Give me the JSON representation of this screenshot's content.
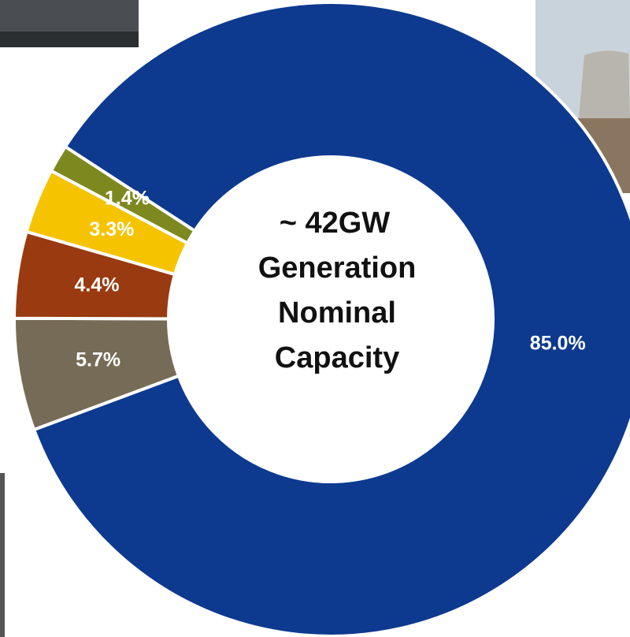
{
  "chart_data": {
    "type": "donut",
    "values": [
      85.0,
      5.7,
      4.4,
      3.3,
      1.4
    ],
    "value_labels": [
      "85.0%",
      "5.7%",
      "4.4%",
      "3.3%",
      "1.4%"
    ],
    "colors": [
      "#0d3a8f",
      "#766b56",
      "#9a3a10",
      "#f6c300",
      "#7d891f"
    ],
    "center_text": [
      "~ 42GW",
      "Generation",
      "Nominal",
      "Capacity"
    ]
  }
}
